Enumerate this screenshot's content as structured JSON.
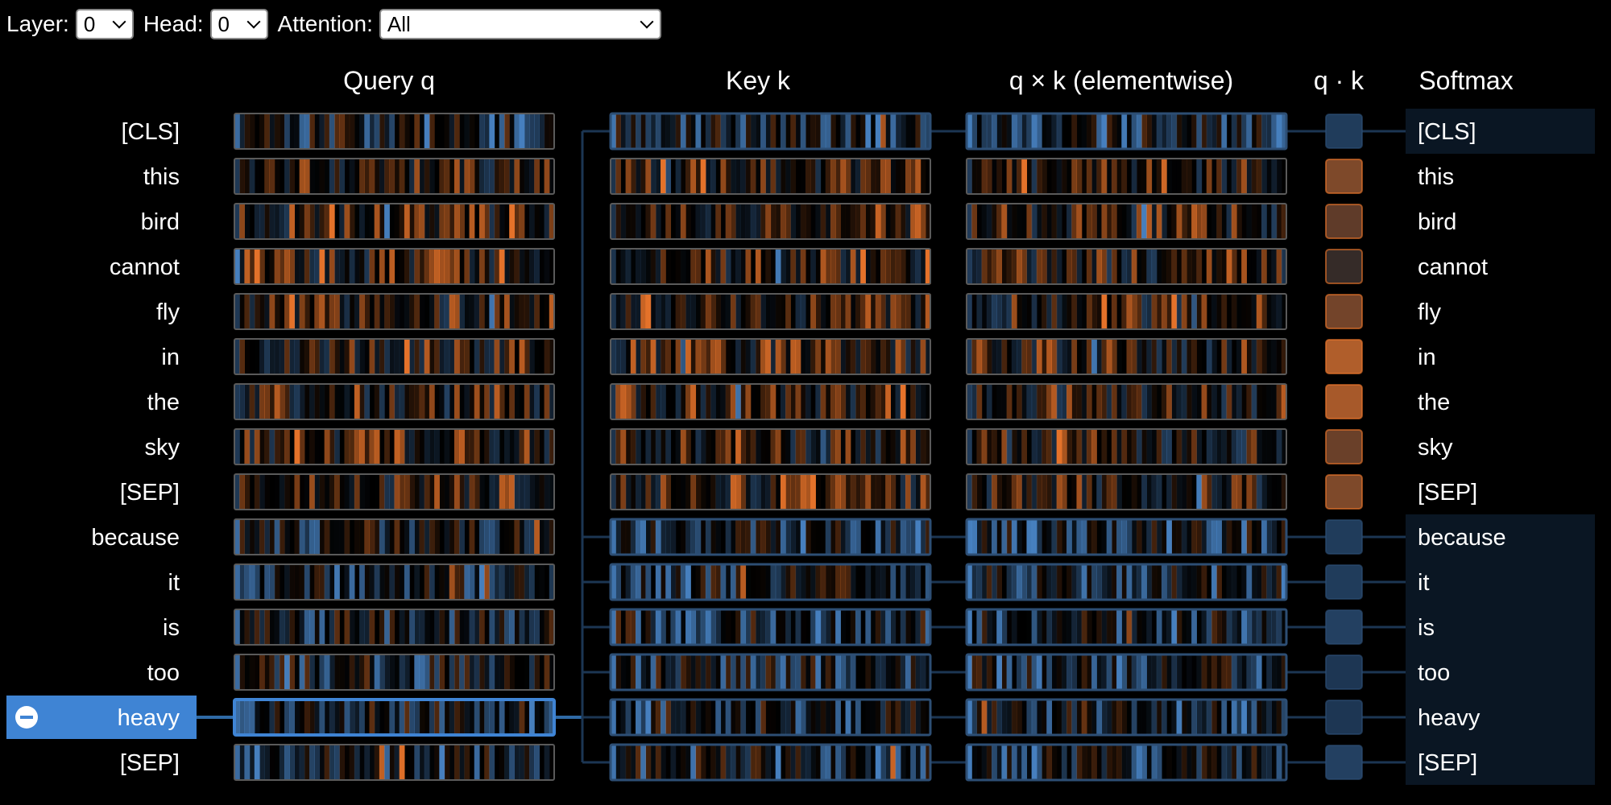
{
  "controls": {
    "layer_label": "Layer:",
    "layer_value": "0",
    "head_label": "Head:",
    "head_value": "0",
    "attention_label": "Attention:",
    "attention_value": "All"
  },
  "columns": {
    "query": "Query q",
    "key": "Key k",
    "product": "q × k (elementwise)",
    "dot": "q · k",
    "softmax": "Softmax"
  },
  "tokens": [
    "[CLS]",
    "this",
    "bird",
    "cannot",
    "fly",
    "in",
    "the",
    "sky",
    "[SEP]",
    "because",
    "it",
    "is",
    "too",
    "heavy",
    "[SEP]"
  ],
  "selected_token_index": 13,
  "selected_token": "heavy",
  "attended_indices": [
    0,
    9,
    10,
    11,
    12,
    13,
    14
  ],
  "dot_product_levels": [
    -0.35,
    0.55,
    0.4,
    0.2,
    0.5,
    0.8,
    0.75,
    0.45,
    0.55,
    -0.35,
    -0.35,
    -0.4,
    -0.3,
    -0.3,
    -0.4
  ],
  "colors": {
    "background": "#000000",
    "selection": "#3f84d4",
    "positive": "#f0782c",
    "negative": "#4a86c8",
    "connector": "#1c3653",
    "connector_active": "#2f6aa6"
  }
}
